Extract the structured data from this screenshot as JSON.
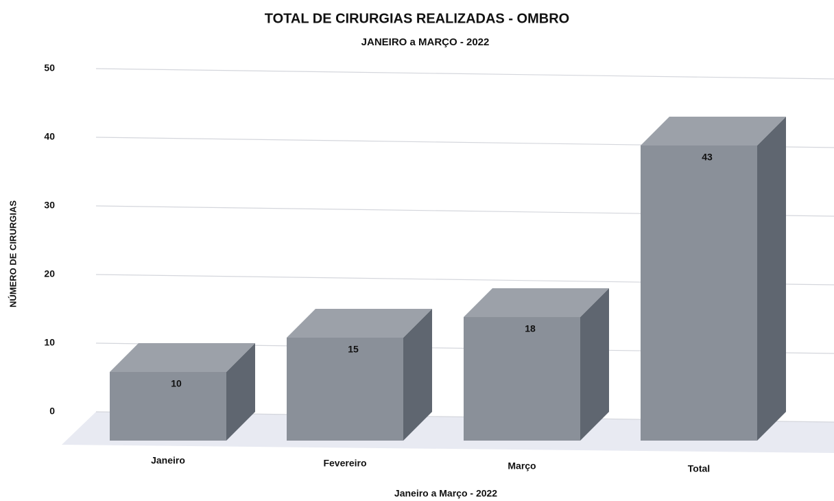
{
  "chart_data": {
    "type": "bar3d",
    "title": "TOTAL DE CIRURGIAS REALIZADAS - OMBRO",
    "subtitle": "JANEIRO a MARÇO - 2022",
    "x_label": "Janeiro a Março - 2022",
    "y_label": "NÚMERO DE CIRURGIAS",
    "categories": [
      "Janeiro",
      "Fevereiro",
      "Março",
      "Total"
    ],
    "values": [
      10,
      15,
      18,
      43
    ],
    "color": "#8a9099",
    "ylim": [
      0,
      50
    ],
    "yticks": [
      0,
      10,
      20,
      30,
      40,
      50
    ],
    "grid": true
  }
}
